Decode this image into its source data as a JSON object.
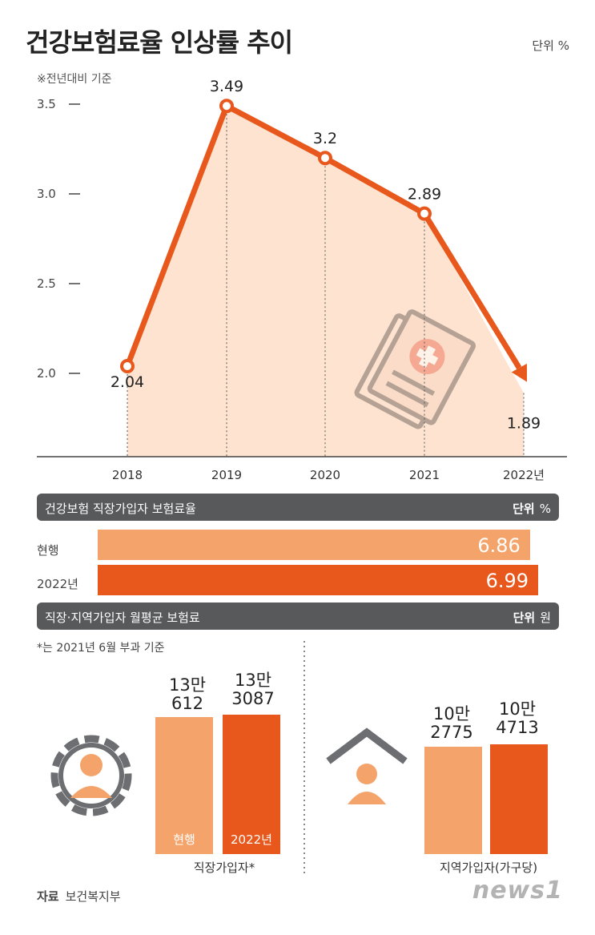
{
  "title": "건강보험료율 인상률 추이",
  "unit_top": "단위 %",
  "basis_note": "※전년대비 기준",
  "chart_data": [
    {
      "type": "line",
      "title": "건강보험료율 인상률 추이",
      "x": [
        "2018",
        "2019",
        "2020",
        "2021",
        "2022년"
      ],
      "values": [
        2.04,
        3.49,
        3.2,
        2.89,
        1.89
      ],
      "value_labels": [
        "2.04",
        "3.49",
        "3.2",
        "2.89",
        "1.89"
      ],
      "yticks": [
        "2.0",
        "2.5",
        "3.0",
        "3.5"
      ],
      "ytick_values": [
        2.0,
        2.5,
        3.0,
        3.5
      ],
      "ylim": [
        1.5,
        3.7
      ],
      "grid": false,
      "line_color": "#e8581c",
      "fill_color": "#fde3d0"
    },
    {
      "type": "bar",
      "title": "건강보험 직장가입자 보험료율",
      "orientation": "horizontal",
      "categories": [
        "현행",
        "2022년"
      ],
      "values": [
        6.86,
        6.99
      ],
      "value_labels": [
        "6.86",
        "6.99"
      ],
      "colors": [
        "#f4a46a",
        "#e8581c"
      ]
    },
    {
      "type": "bar",
      "title": "직장·지역가입자 월평균 보험료",
      "groups": [
        {
          "name": "직장가입자*",
          "categories": [
            "현행",
            "2022년"
          ],
          "values": [
            130612,
            133087
          ],
          "value_labels": [
            [
              "13만",
              "612"
            ],
            [
              "13만",
              "3087"
            ]
          ]
        },
        {
          "name": "지역가입자(가구당)",
          "categories": [
            "",
            ""
          ],
          "values": [
            102775,
            104713
          ],
          "value_labels": [
            [
              "10만",
              "2775"
            ],
            [
              "10만",
              "4713"
            ]
          ]
        }
      ],
      "colors": [
        "#f4a46a",
        "#e8581c"
      ]
    }
  ],
  "section1": {
    "label": "건강보험 직장가입자 보험료율",
    "unit_key": "단위",
    "unit_val": "%"
  },
  "section2": {
    "label": "직장·지역가입자 월평균 보험료",
    "unit_key": "단위",
    "unit_val": "원"
  },
  "footnote": "*는 2021년 6월 부과 기준",
  "source": {
    "key": "자료",
    "value": "보건복지부"
  },
  "logo": "news1",
  "icons": [
    "document-medical-icon",
    "gear-person-icon",
    "house-person-icon",
    "news1-logo"
  ]
}
